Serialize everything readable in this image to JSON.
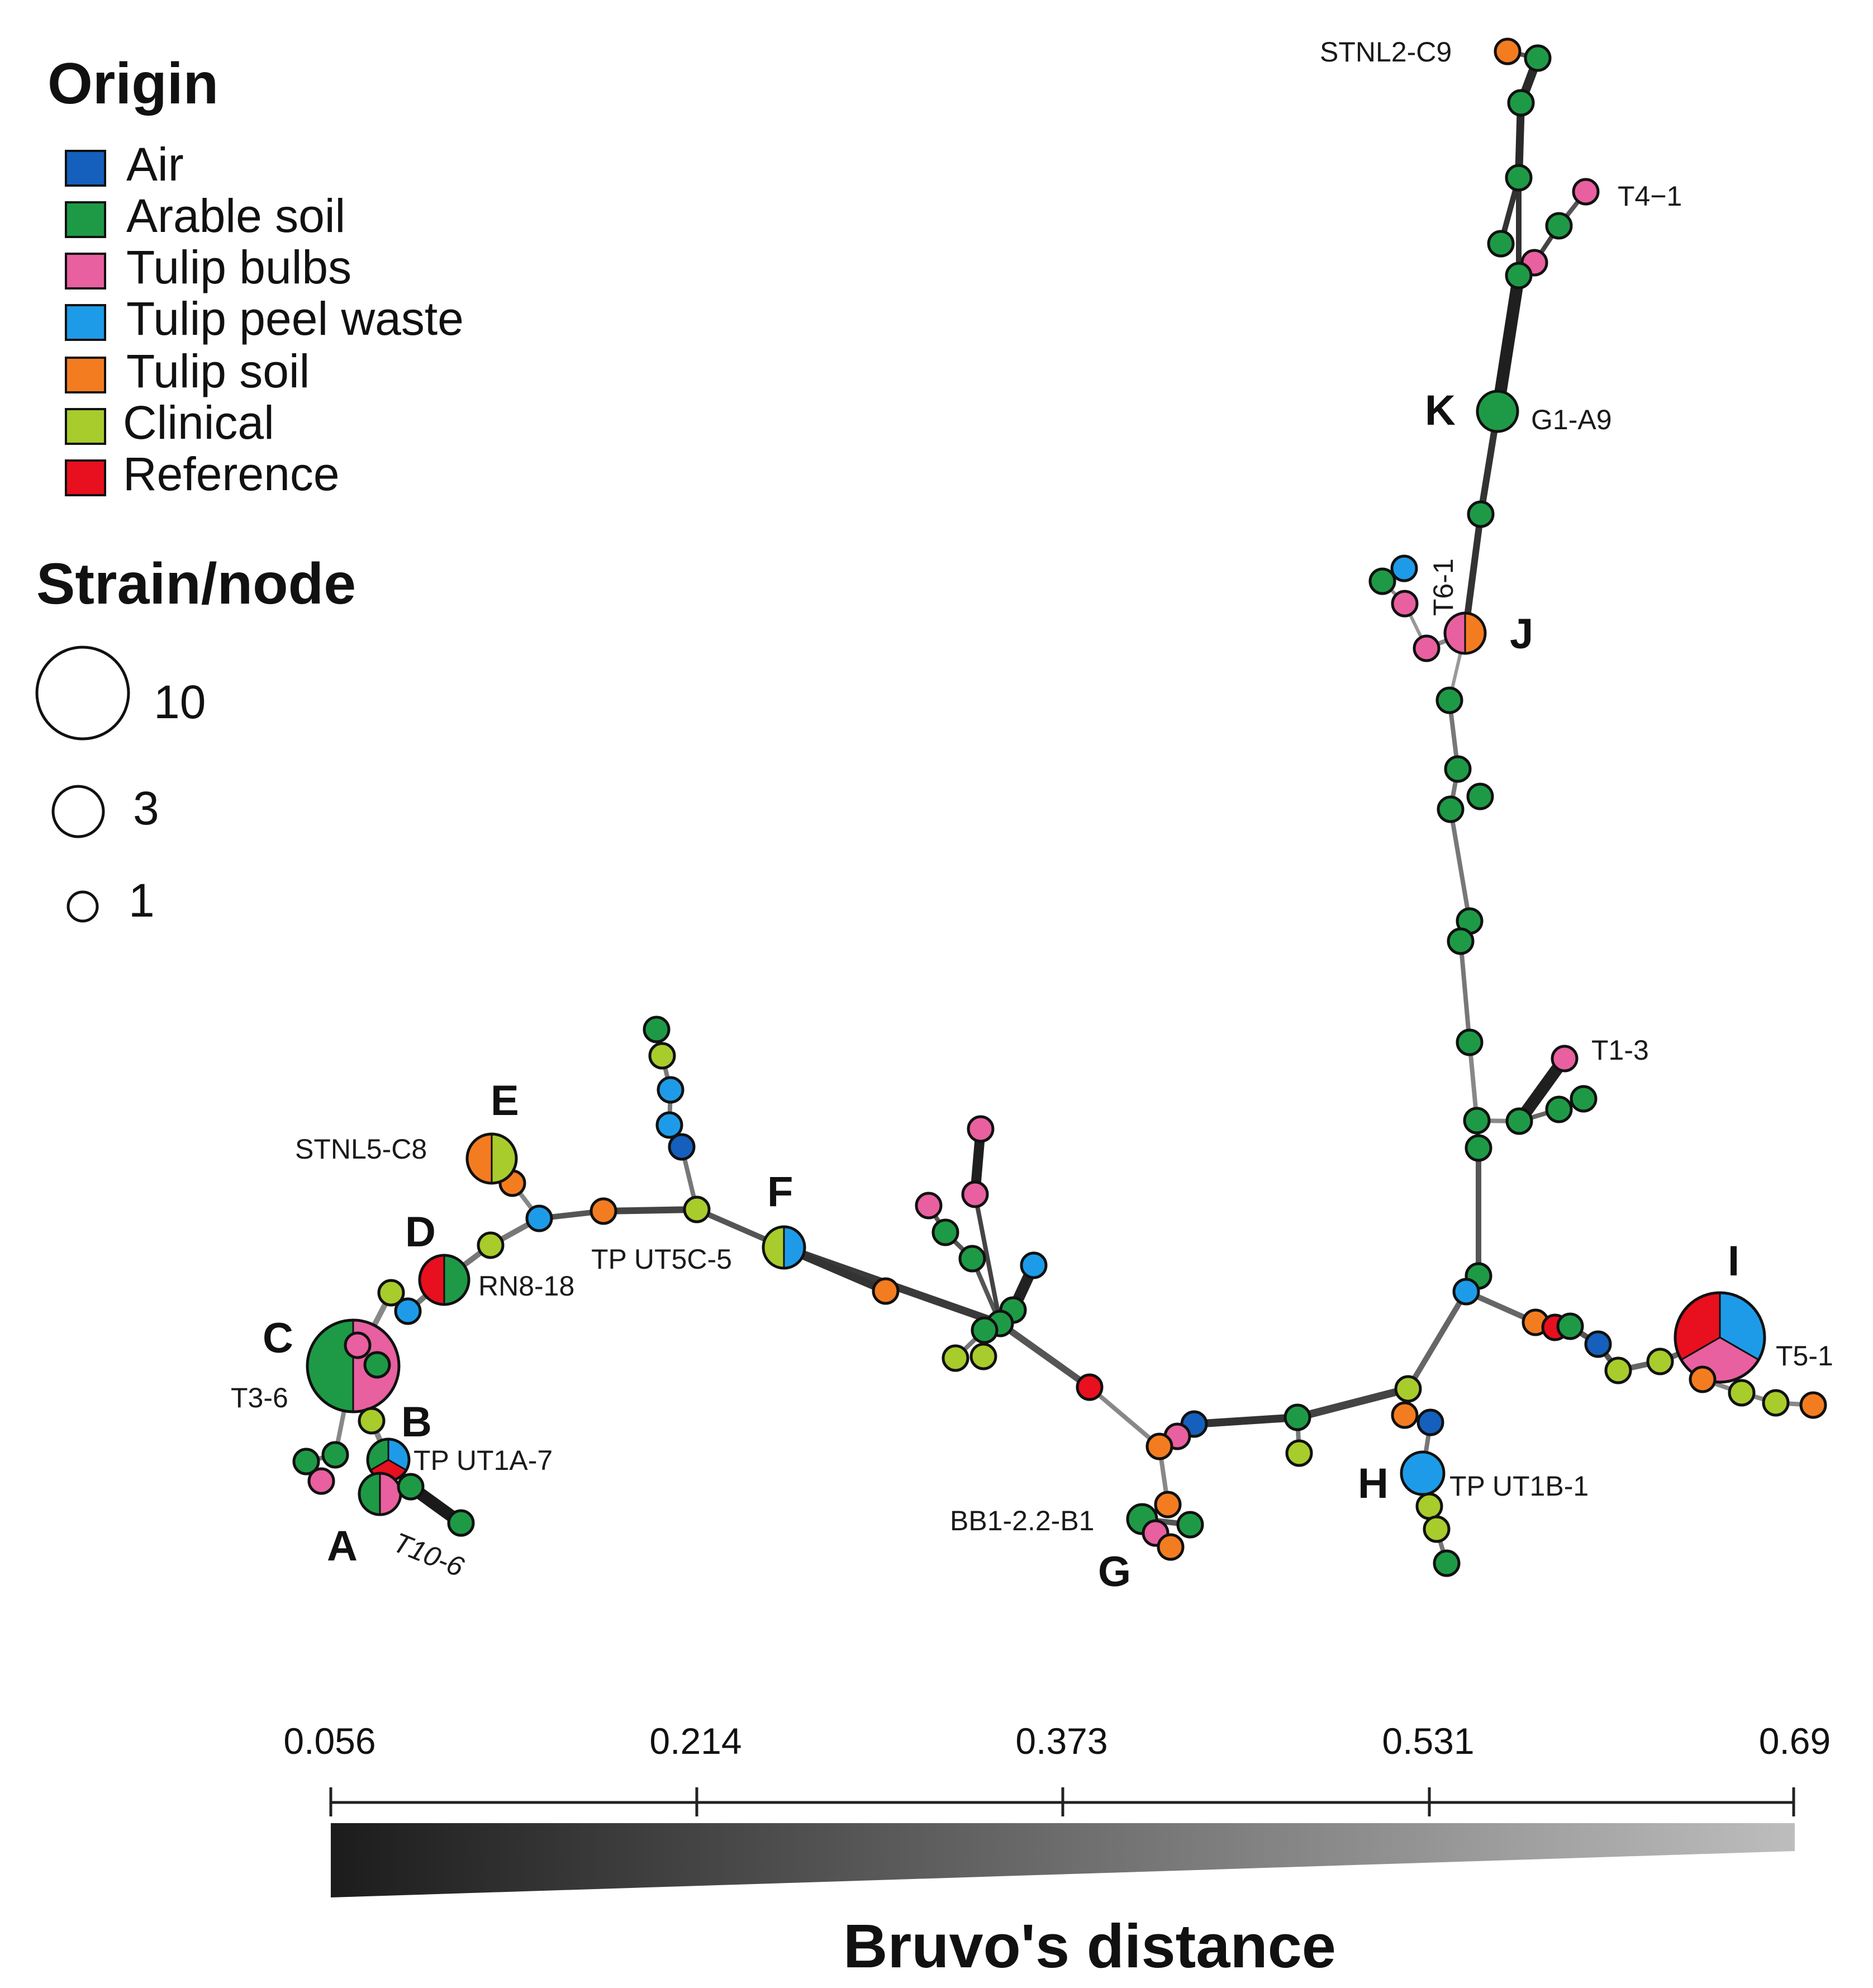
{
  "legend": {
    "origin_title": "Origin",
    "items": [
      {
        "key": "air",
        "label": "Air",
        "color": "#1560bd"
      },
      {
        "key": "arable",
        "label": "Arable soil",
        "color": "#1e9a46"
      },
      {
        "key": "bulbs",
        "label": "Tulip bulbs",
        "color": "#e8609f"
      },
      {
        "key": "peel",
        "label": "Tulip peel waste",
        "color": "#1e9be8"
      },
      {
        "key": "tsoil",
        "label": "Tulip soil",
        "color": "#f47c20"
      },
      {
        "key": "clinical",
        "label": "Clinical",
        "color": "#a8cc2c"
      },
      {
        "key": "reference",
        "label": "Reference",
        "color": "#e8101e"
      }
    ],
    "size_title": "Strain/node",
    "sizes": [
      {
        "value": "10"
      },
      {
        "value": "3"
      },
      {
        "value": "1"
      }
    ]
  },
  "clusters": [
    "A",
    "B",
    "C",
    "D",
    "E",
    "F",
    "G",
    "H",
    "I",
    "J",
    "K"
  ],
  "node_labels": {
    "stnl2_c9": "STNL2-C9",
    "t4_1": "T4−1",
    "g1_a9": "G1-A9",
    "t6_1": "T6-1",
    "t1_3": "T1-3",
    "t5_1": "T5-1",
    "tp_ut1b_1": "TP UT1B-1",
    "bb1": "BB1-2.2-B1",
    "tp_ut5c_5": "TP UT5C-5",
    "stnl5_c8": "STNL5-C8",
    "rn8_18": "RN8-18",
    "t3_6": "T3-6",
    "tp_ut1a_7": "TP UT1A-7",
    "t10_6": "T10-6"
  },
  "scale": {
    "ticks": [
      "0.056",
      "0.214",
      "0.373",
      "0.531",
      "0.69"
    ],
    "title": "Bruvo's distance",
    "dark_color": "#1c1c1c",
    "light_color": "#bdbdbd"
  }
}
